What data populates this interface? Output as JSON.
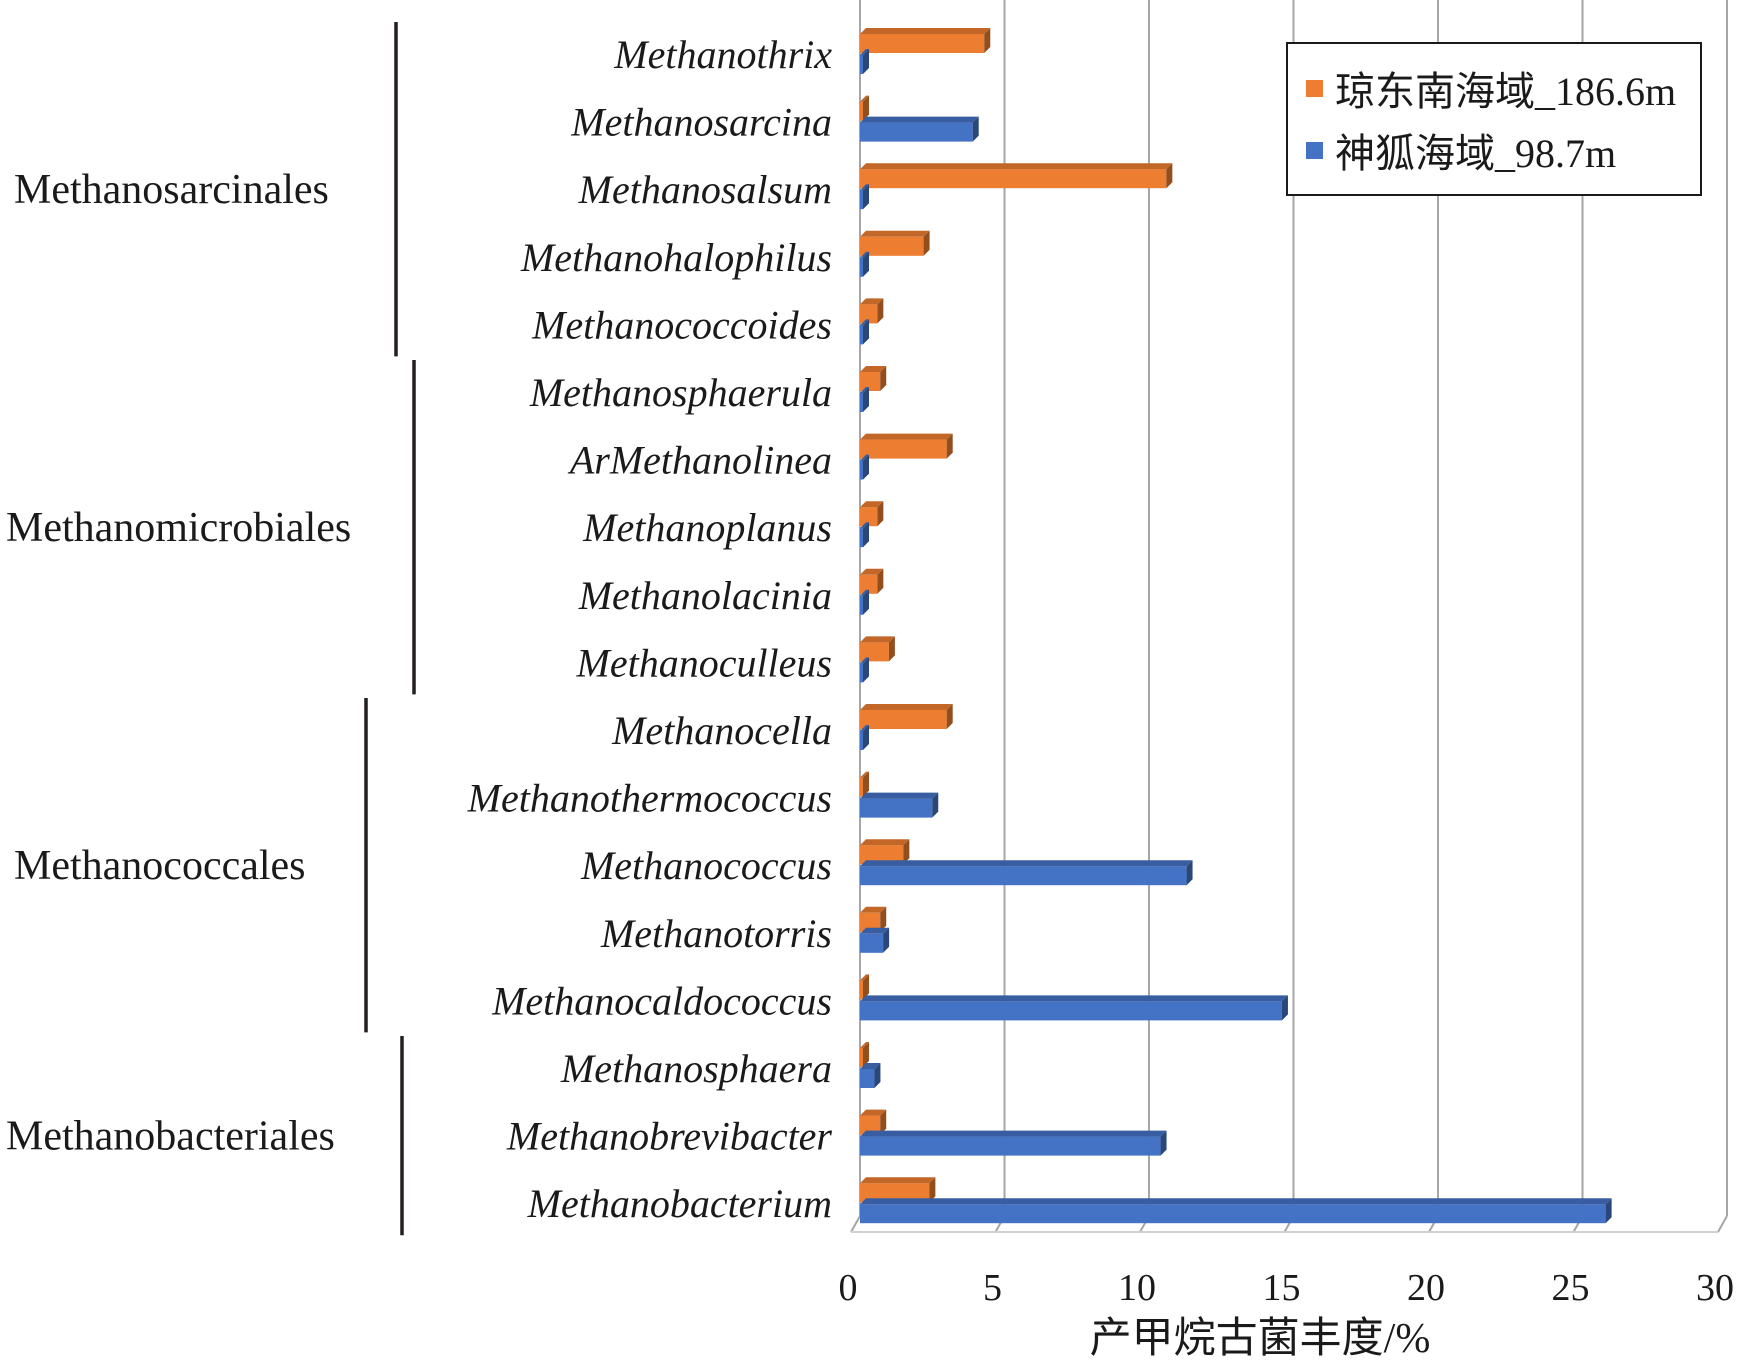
{
  "chart_data": {
    "type": "bar",
    "orientation": "horizontal",
    "categories": [
      "Methanothrix",
      "Methanosarcina",
      "Methanosalsum",
      "Methanohalophilus",
      "Methanococcoides",
      "Methanosphaerula",
      "ArMethanolinea",
      "Methanoplanus",
      "Methanolacinia",
      "Methanoculleus",
      "Methanocella",
      "Methanothermococcus",
      "Methanococcus",
      "Methanotorris",
      "Methanocaldococcus",
      "Methanosphaera",
      "Methanobrevibacter",
      "Methanobacterium"
    ],
    "series": [
      {
        "name": "琼东南海域_186.6m",
        "color": "#ED7D31",
        "values": [
          4.3,
          0.1,
          10.6,
          2.2,
          0.6,
          0.7,
          3.0,
          0.6,
          0.6,
          1.0,
          3.0,
          0.1,
          1.5,
          0.7,
          0.1,
          0.1,
          0.7,
          2.4
        ]
      },
      {
        "name": "神狐海域_98.7m",
        "color": "#4472C4",
        "values": [
          0.1,
          3.9,
          0.1,
          0.1,
          0.1,
          0.1,
          0.1,
          0.1,
          0.1,
          0.1,
          0.1,
          2.5,
          11.3,
          0.8,
          14.6,
          0.5,
          10.4,
          25.8
        ]
      }
    ],
    "groups": [
      {
        "label": "Methanosarcinales",
        "start": 0,
        "end": 4
      },
      {
        "label": "Methanomicrobiales",
        "start": 5,
        "end": 9
      },
      {
        "label": "Methanococcales",
        "start": 10,
        "end": 14
      },
      {
        "label": "Methanobacteriales",
        "start": 15,
        "end": 17
      }
    ],
    "xlabel": "产甲烷古菌丰度/%",
    "xlim": [
      0,
      30
    ],
    "xticks": [
      0,
      5,
      10,
      15,
      20,
      25,
      30
    ],
    "grid": true,
    "legend_position": "top-right"
  }
}
